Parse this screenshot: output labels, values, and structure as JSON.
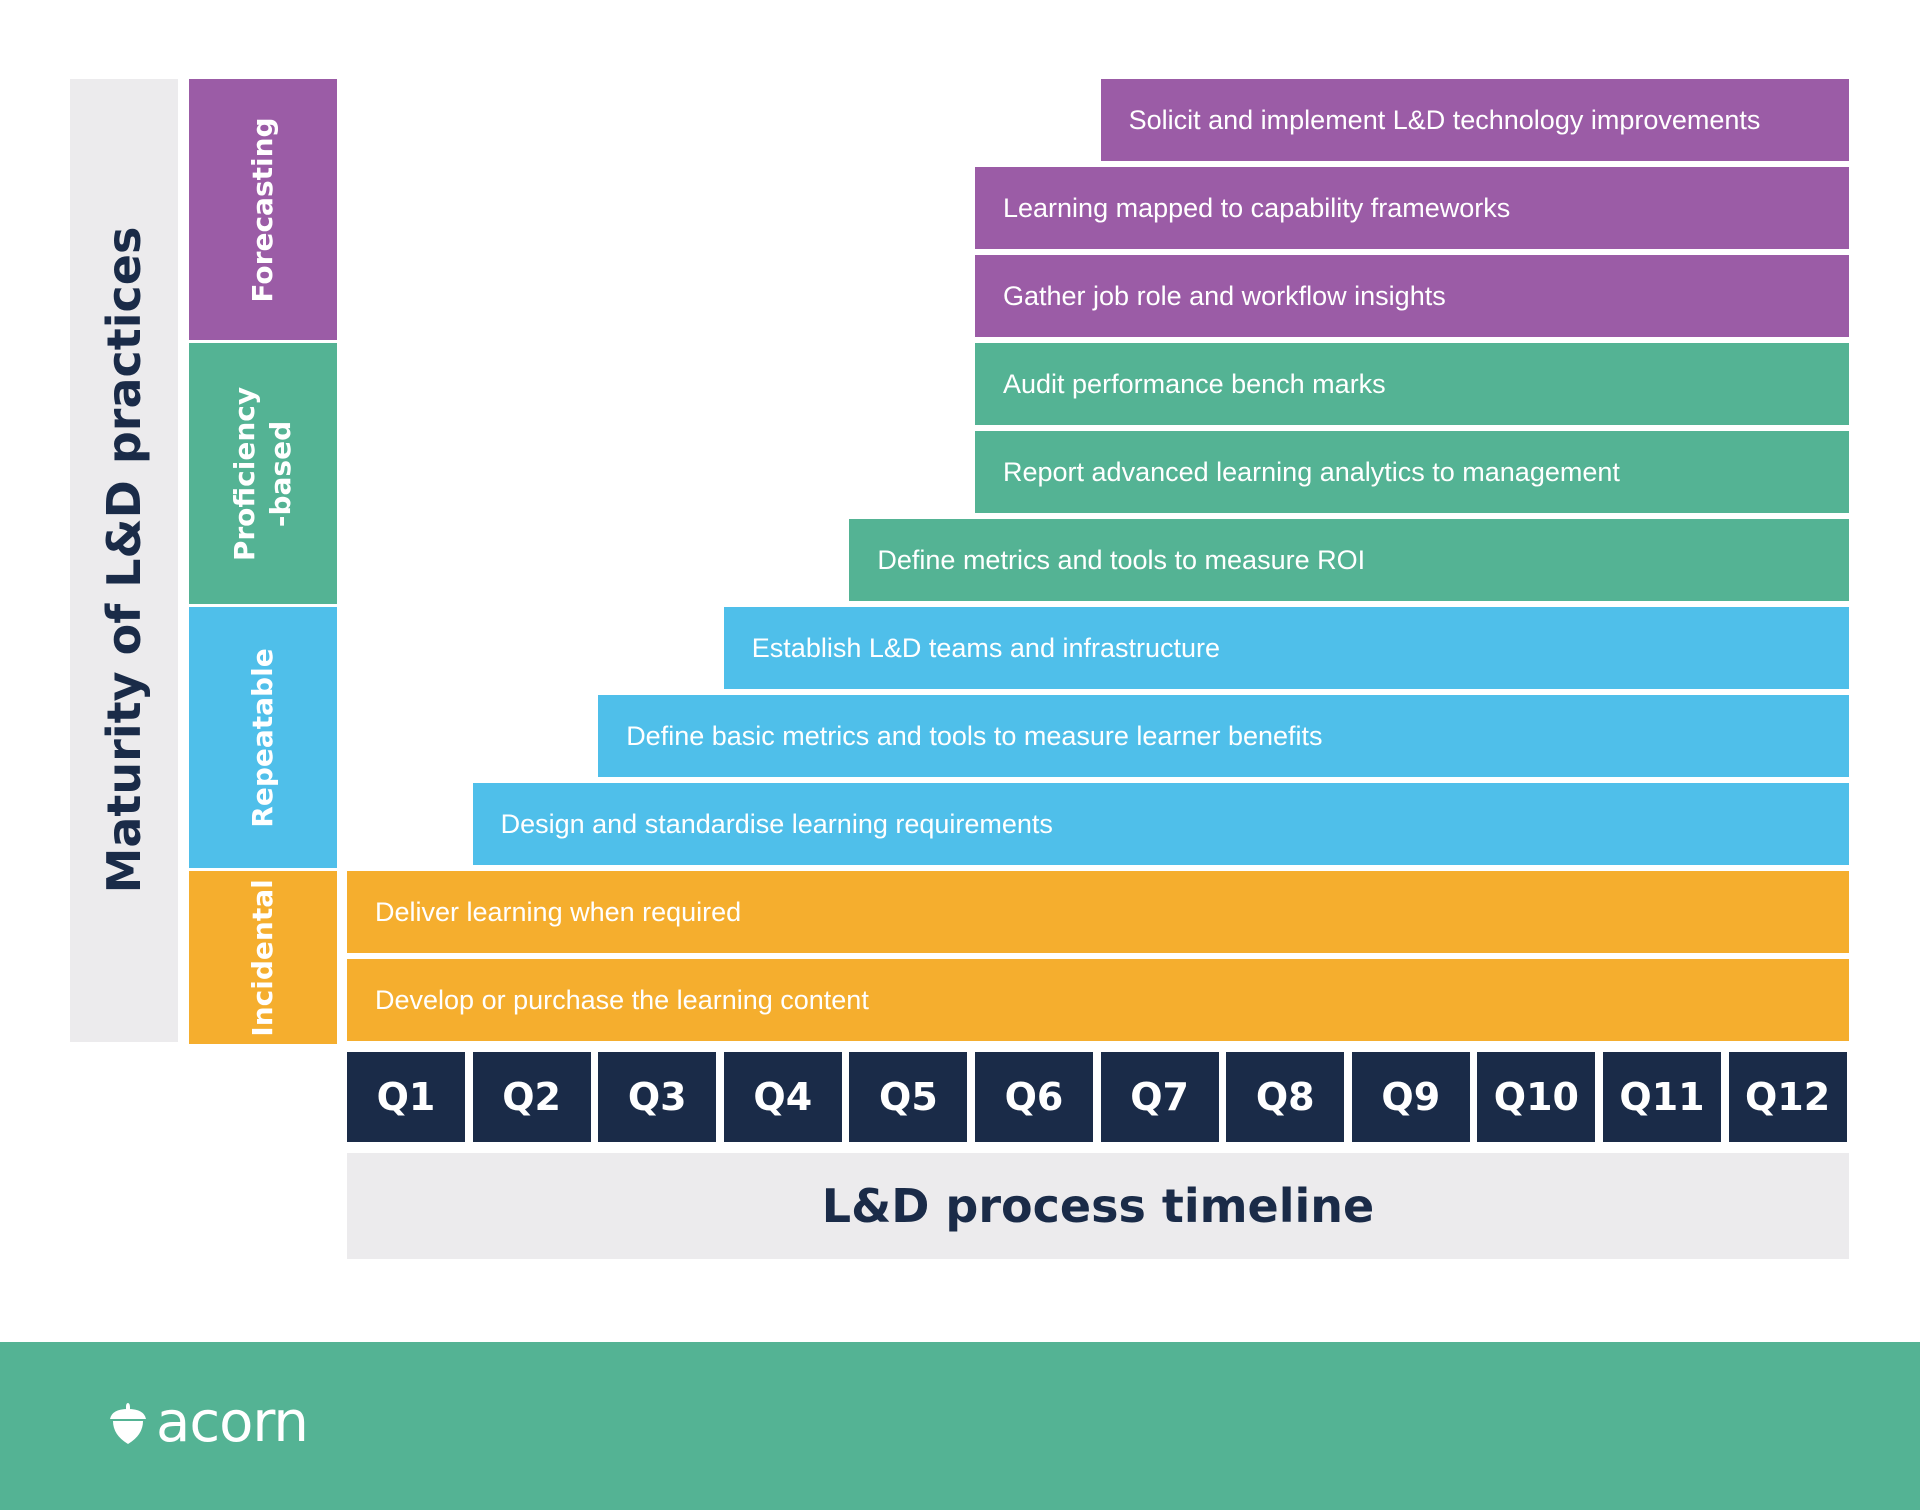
{
  "diagram": {
    "y_axis_title": "Maturity of L&D practices",
    "x_axis_title": "L&D process timeline",
    "stages": [
      {
        "label": "Forecasting",
        "color": "#9b5ca6"
      },
      {
        "label": "Proficiency\n-based",
        "color": "#54b394"
      },
      {
        "label": "Repeatable",
        "color": "#4fbfea"
      },
      {
        "label": "Incidental",
        "color": "#f5ae2e"
      }
    ],
    "activities": [
      {
        "label": "Solicit and implement L&D technology improvements",
        "stage": "Forecasting",
        "start_quarter": "Q7"
      },
      {
        "label": "Learning mapped to capability frameworks",
        "stage": "Forecasting",
        "start_quarter": "Q6"
      },
      {
        "label": "Gather job role and workflow insights",
        "stage": "Forecasting",
        "start_quarter": "Q6"
      },
      {
        "label": "Audit performance bench marks",
        "stage": "Proficiency-based",
        "start_quarter": "Q6"
      },
      {
        "label": "Report advanced learning analytics to management",
        "stage": "Proficiency-based",
        "start_quarter": "Q6"
      },
      {
        "label": "Define metrics and tools to measure ROI",
        "stage": "Proficiency-based",
        "start_quarter": "Q5"
      },
      {
        "label": "Establish L&D teams and infrastructure",
        "stage": "Repeatable",
        "start_quarter": "Q4"
      },
      {
        "label": "Define basic metrics and tools to measure learner benefits",
        "stage": "Repeatable",
        "start_quarter": "Q3"
      },
      {
        "label": "Design and standardise learning requirements",
        "stage": "Repeatable",
        "start_quarter": "Q2"
      },
      {
        "label": "Deliver learning when required",
        "stage": "Incidental",
        "start_quarter": "Q1"
      },
      {
        "label": "Develop or purchase the learning content",
        "stage": "Incidental",
        "start_quarter": "Q1"
      }
    ],
    "quarters": [
      "Q1",
      "Q2",
      "Q3",
      "Q4",
      "Q5",
      "Q6",
      "Q7",
      "Q8",
      "Q9",
      "Q10",
      "Q11",
      "Q12"
    ]
  },
  "footer": {
    "logo_text": "acorn",
    "logo_icon": "acorn-icon",
    "color": "#54b394"
  }
}
